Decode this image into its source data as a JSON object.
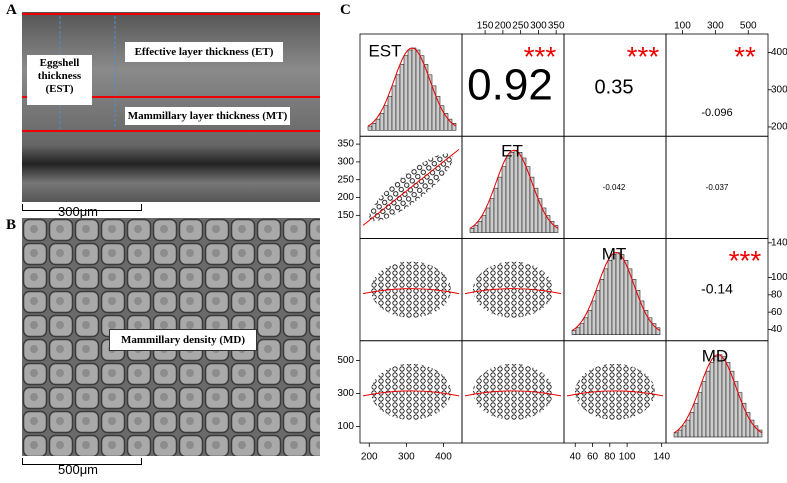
{
  "panel_a": {
    "label": "A",
    "eggshell": "Eggshell thickness (EST)",
    "effective": "Effective layer thickness (ET)",
    "mammillary": "Mammillary layer thickness (MT)",
    "scale_bar": "300μm"
  },
  "panel_b": {
    "label": "B",
    "density": "Mammillary density (MD)",
    "scale_bar": "500μm"
  },
  "panel_c": {
    "label": "C",
    "variables": [
      {
        "name": "EST",
        "lim": [
          175,
          450
        ],
        "ticks": [
          200,
          300,
          400
        ]
      },
      {
        "name": "ET",
        "lim": [
          85,
          372
        ],
        "ticks": [
          150,
          200,
          250,
          300,
          350
        ]
      },
      {
        "name": "MT",
        "lim": [
          27,
          145
        ],
        "ticks": [
          40,
          60,
          80,
          100,
          140
        ]
      },
      {
        "name": "MD",
        "lim": [
          0,
          620
        ],
        "ticks": [
          100,
          300,
          500
        ]
      }
    ],
    "correlations": [
      {
        "row": 0,
        "col": 1,
        "value": 0.92,
        "stars": "***"
      },
      {
        "row": 0,
        "col": 2,
        "value": 0.35,
        "stars": "***"
      },
      {
        "row": 0,
        "col": 3,
        "value": -0.096,
        "stars": "**"
      },
      {
        "row": 1,
        "col": 2,
        "value": -0.042
      },
      {
        "row": 1,
        "col": 3,
        "value": -0.037
      },
      {
        "row": 2,
        "col": 3,
        "value": -0.14,
        "stars": "***"
      }
    ]
  }
}
